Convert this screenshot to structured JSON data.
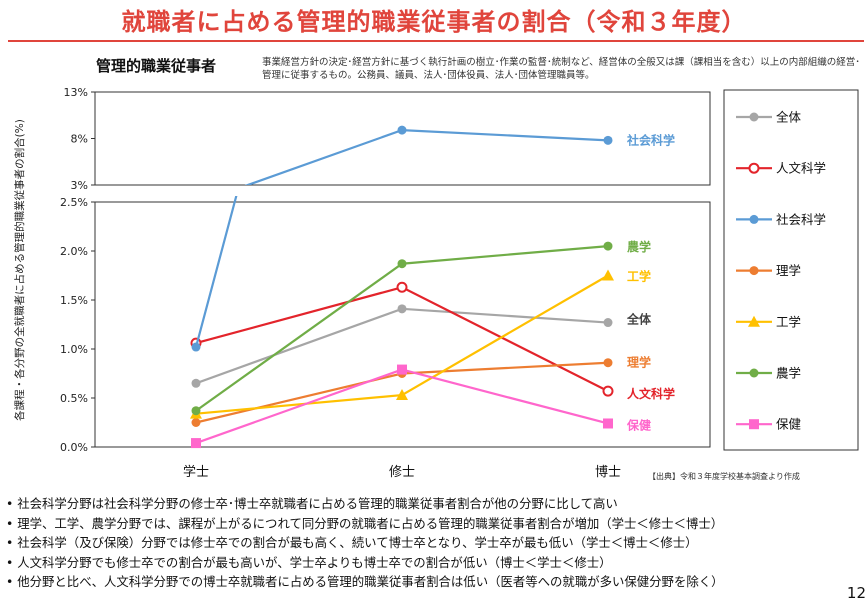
{
  "title": "就職者に占める管理的職業従事者の割合（令和３年度）",
  "subtitle": "管理的職業従事者",
  "description": "事業経営方針の決定･経営方針に基づく執行計画の樹立･作業の監督･統制など、経営体の全般又は課（課相当を含む）以上の内部組織の経営･管理に従事するもの。公務員、議員、法人･団体役員、法人･団体管理職員等。",
  "source": "【出典】令和３年度学校基本調査より作成",
  "page_number": "12",
  "bullets": [
    "社会科学分野は社会科学分野の修士卒･博士卒就職者に占める管理的職業従事者割合が他の分野に比して高い",
    "理学、工学、農学分野では、課程が上がるにつれて同分野の就職者に占める管理的職業従事者割合が増加（学士＜修士＜博士）",
    "社会科学（及び保険）分野では修士卒での割合が最も高く、続いて博士卒となり、学士卒が最も低い（学士＜博士＜修士）",
    "人文科学分野でも修士卒での割合が最も高いが、学士卒よりも博士卒での割合が低い（博士＜学士＜修士）",
    "他分野と比べ、人文科学分野での博士卒就職者に占める管理的職業従事者割合は低い（医者等への就職が多い保健分野を除く）"
  ],
  "chart_data": {
    "type": "line",
    "ylabel": "各課程・各分野の全就職者に占める管理的職業従事者の割合(%)",
    "categories": [
      "学士",
      "修士",
      "博士"
    ],
    "y_top_panel": {
      "range": [
        3,
        13
      ],
      "ticks": [
        3,
        8,
        13
      ],
      "tick_labels": [
        "3%",
        "8%",
        "13%"
      ]
    },
    "y_bottom_panel": {
      "range": [
        0,
        2.5
      ],
      "ticks": [
        0,
        0.5,
        1.0,
        1.5,
        2.0,
        2.5
      ],
      "tick_labels": [
        "0.0%",
        "0.5%",
        "1.0%",
        "1.5%",
        "2.0%",
        "2.5%"
      ]
    },
    "grid": false,
    "legend_position": "right",
    "series": [
      {
        "name": "全体",
        "color": "#a6a6a6",
        "marker": "circle",
        "values": [
          0.65,
          1.41,
          1.27
        ]
      },
      {
        "name": "人文科学",
        "color": "#e3242b",
        "marker": "circle-open",
        "values": [
          1.06,
          1.63,
          0.57
        ]
      },
      {
        "name": "社会科学",
        "color": "#5b9bd5",
        "marker": "circle",
        "values": [
          1.02,
          8.9,
          7.8
        ]
      },
      {
        "name": "理学",
        "color": "#ed7d31",
        "marker": "circle",
        "values": [
          0.25,
          0.75,
          0.86
        ]
      },
      {
        "name": "工学",
        "color": "#ffc000",
        "marker": "triangle",
        "values": [
          0.34,
          0.53,
          1.75
        ]
      },
      {
        "name": "農学",
        "color": "#70ad47",
        "marker": "circle",
        "values": [
          0.37,
          1.87,
          2.05
        ]
      },
      {
        "name": "保健",
        "color": "#ff66cc",
        "marker": "square",
        "values": [
          0.04,
          0.79,
          0.24
        ]
      }
    ],
    "end_labels": [
      {
        "series": "社会科学",
        "text": "社会科学",
        "color": "#5b9bd5"
      },
      {
        "series": "農学",
        "text": "農学",
        "color": "#70ad47"
      },
      {
        "series": "工学",
        "text": "工学",
        "color": "#ffc000"
      },
      {
        "series": "全体",
        "text": "全体",
        "color": "#444444"
      },
      {
        "series": "理学",
        "text": "理学",
        "color": "#ed7d31"
      },
      {
        "series": "人文科学",
        "text": "人文科学",
        "color": "#e3242b"
      },
      {
        "series": "保健",
        "text": "保健",
        "color": "#ff66cc"
      }
    ]
  }
}
